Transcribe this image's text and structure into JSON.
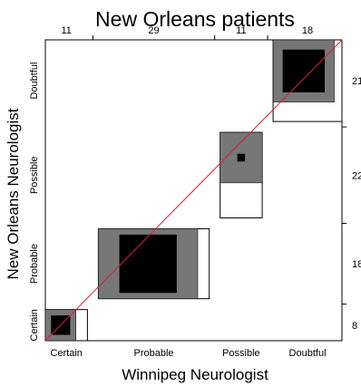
{
  "chart_data": {
    "type": "agreement-chart",
    "title": "New Orleans patients",
    "xlabel": "Winnipeg Neurologist",
    "ylabel": "New Orleans Neurologist",
    "categories": [
      "Certain",
      "Probable",
      "Possible",
      "Doubtful"
    ],
    "col_totals": [
      11,
      29,
      11,
      18
    ],
    "row_totals": [
      8,
      18,
      22,
      21
    ],
    "diagonal_agreement": [
      5,
      15,
      2,
      11
    ],
    "partial_agreement": [
      8,
      26,
      13,
      16
    ],
    "colors": {
      "exact": "#000000",
      "partial": "#777777",
      "frame": "#000000",
      "reference_line": "#e0202a"
    }
  }
}
